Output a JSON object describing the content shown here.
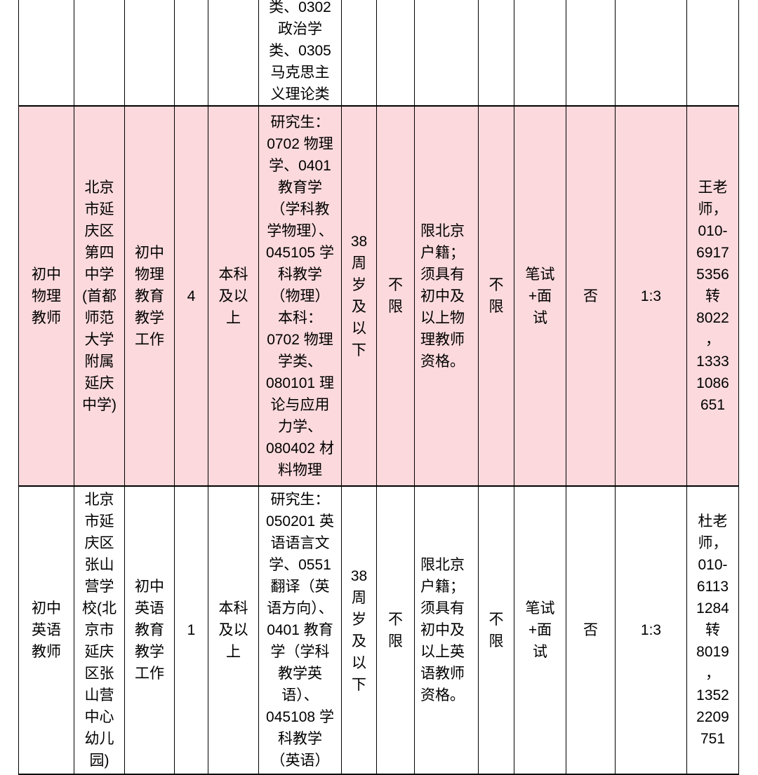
{
  "page": {
    "background": "#ffffff"
  },
  "table": {
    "highlight_color": "#fbd9dc",
    "border_color": "#000000",
    "text_color": "#000000",
    "rows": [
      {
        "highlight": false,
        "cells": [
          "",
          "",
          "",
          "",
          "",
          "类、0302\n政治学\n类、0305\n马克思主\n义理论类",
          "",
          "",
          "",
          "",
          "",
          "",
          "",
          ""
        ]
      },
      {
        "highlight": true,
        "cells": [
          "初中\n物理\n教师",
          "北京\n市延\n庆区\n第四\n中学\n(首都\n师范\n大学\n附属\n延庆\n中学)",
          "初中\n物理\n教育\n教学\n工作",
          "4",
          "本科\n及以\n上",
          "研究生：\n0702 物理\n学、0401\n教育学\n（学科教\n学物理）、\n045105 学\n科教学\n（物理）\n本科：\n0702 物理\n学类、\n080101 理\n论与应用\n力学、\n080402 材\n料物理",
          "38\n周\n岁\n及\n以\n下",
          "不\n限",
          "限北京\n户籍；\n须具有\n初中及\n以上物\n理教师\n资格。",
          "不\n限",
          "笔试\n+面\n试",
          "否",
          "1:3",
          "王老\n师，\n010-\n6917\n5356\n转\n8022\n，\n1333\n1086\n651"
        ]
      },
      {
        "highlight": false,
        "cells": [
          "初中\n英语\n教师",
          "北京\n市延\n庆区\n张山\n营学\n校(北\n京市\n延庆\n区张\n山营\n中心\n幼儿\n园)",
          "初中\n英语\n教育\n教学\n工作",
          "1",
          "本科\n及以\n上",
          "研究生：\n050201 英\n语语言文\n学、0551\n翻译（英\n语方向）、\n0401 教育\n学（学科\n教学英\n语）、\n045108 学\n科教学\n（英语）",
          "38\n周\n岁\n及\n以\n下",
          "不\n限",
          "限北京\n户籍；\n须具有\n初中及\n以上英\n语教师\n资格。",
          "不\n限",
          "笔试\n+面\n试",
          "否",
          "1:3",
          "杜老\n师，\n010-\n6113\n1284\n转\n8019\n，\n1352\n2209\n751"
        ]
      }
    ]
  }
}
